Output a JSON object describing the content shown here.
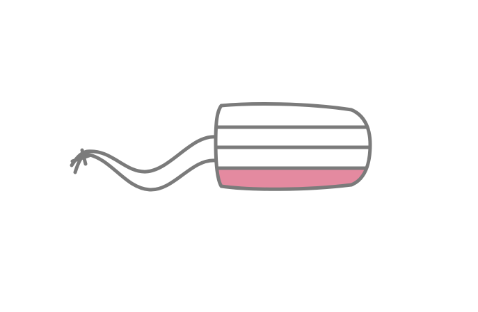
{
  "illustration": {
    "icon": "tampon-icon",
    "absorbency_level": {
      "filled_bands": 1,
      "total_bands": 4
    },
    "colors": {
      "outline": "#7b7b7b",
      "fill": "#e48aa0",
      "background": "#ffffff",
      "body": "#ffffff"
    }
  }
}
